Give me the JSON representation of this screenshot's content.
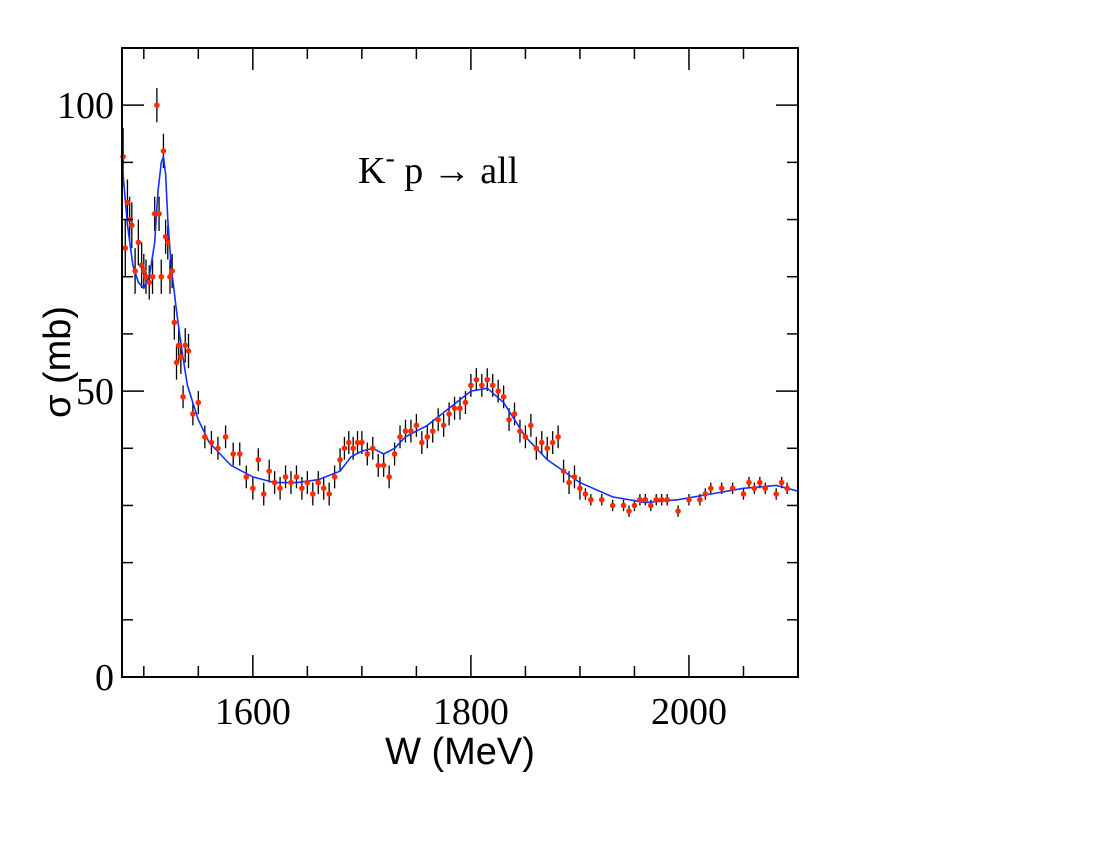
{
  "chart_data": {
    "type": "scatter",
    "title": "",
    "annotation": {
      "particle": "K",
      "charge": "-",
      "rest": " p → all"
    },
    "xlabel": "W (MeV)",
    "ylabel": "σ (mb)",
    "xlim": [
      1480,
      2100
    ],
    "ylim": [
      0,
      110
    ],
    "x_ticks": [
      1600,
      1800,
      2000
    ],
    "y_ticks": [
      0,
      50,
      100
    ],
    "grid": false,
    "colors": {
      "points": "#ff2a00",
      "errors": "#000000",
      "fit": "#1030ff",
      "frame": "#000000"
    },
    "series": [
      {
        "kind": "points_with_errors",
        "x": [
          1481,
          1483,
          1485,
          1487,
          1489,
          1492,
          1495,
          1498,
          1500,
          1502,
          1505,
          1508,
          1510,
          1512,
          1514,
          1516,
          1518,
          1520,
          1522,
          1524,
          1526,
          1528,
          1530,
          1532,
          1534,
          1536,
          1538,
          1541,
          1545,
          1550,
          1556,
          1562,
          1568,
          1575,
          1582,
          1588,
          1594,
          1600,
          1605,
          1610,
          1615,
          1620,
          1625,
          1630,
          1635,
          1640,
          1645,
          1650,
          1655,
          1660,
          1665,
          1670,
          1675,
          1680,
          1684,
          1688,
          1692,
          1696,
          1700,
          1705,
          1710,
          1715,
          1720,
          1725,
          1730,
          1735,
          1740,
          1745,
          1750,
          1755,
          1760,
          1765,
          1770,
          1775,
          1780,
          1785,
          1790,
          1795,
          1800,
          1805,
          1810,
          1815,
          1820,
          1825,
          1830,
          1835,
          1840,
          1845,
          1850,
          1855,
          1860,
          1865,
          1870,
          1875,
          1880,
          1885,
          1890,
          1895,
          1900,
          1905,
          1910,
          1920,
          1930,
          1940,
          1945,
          1950,
          1955,
          1960,
          1965,
          1970,
          1975,
          1980,
          1990,
          2000,
          2010,
          2015,
          2020,
          2030,
          2040,
          2050,
          2055,
          2060,
          2065,
          2070,
          2080,
          2085,
          2090
        ],
        "y": [
          91,
          75,
          83,
          80,
          79,
          71,
          76,
          72,
          71,
          70,
          69,
          70,
          81,
          100,
          81,
          70,
          92,
          77,
          76,
          70,
          71,
          62,
          55,
          58,
          56,
          49,
          58,
          57,
          46,
          48,
          42,
          41,
          40,
          42,
          39,
          39,
          35,
          33,
          38,
          32,
          36,
          34,
          33,
          35,
          34,
          35,
          33,
          34,
          32,
          34,
          33,
          32,
          35,
          38,
          40,
          41,
          40,
          41,
          41,
          39,
          40,
          37,
          37,
          35,
          39,
          42,
          43,
          43,
          44,
          41,
          42,
          43,
          45,
          44,
          46,
          47,
          47,
          48,
          51,
          52,
          51,
          52,
          51,
          50,
          49,
          45,
          46,
          43,
          42,
          44,
          40,
          41,
          40,
          41,
          42,
          36,
          34,
          35,
          33,
          32,
          31,
          31,
          30,
          30,
          29,
          30,
          31,
          31,
          30,
          31,
          31,
          31,
          29,
          31,
          31,
          32,
          33,
          33,
          33,
          32,
          34,
          33,
          34,
          33,
          32,
          34,
          33
        ],
        "err": [
          5,
          5,
          4,
          4,
          4,
          4,
          4,
          4,
          3,
          3,
          3,
          3,
          3,
          3,
          3,
          3,
          3,
          3,
          3,
          3,
          3,
          3,
          3,
          3,
          3,
          2,
          3,
          3,
          2,
          2,
          2,
          2,
          2,
          2,
          2,
          2,
          2,
          2,
          2,
          2,
          2,
          2,
          2,
          2,
          2,
          2,
          2,
          2,
          2,
          2,
          2,
          2,
          2,
          2,
          2,
          2,
          2,
          2,
          2,
          2,
          2,
          2,
          2,
          2,
          2,
          2,
          2,
          2,
          2,
          2,
          2,
          2,
          2,
          2,
          2,
          2,
          2,
          2,
          2,
          2,
          2,
          2,
          2,
          2,
          2,
          2,
          2,
          2,
          2,
          2,
          2,
          2,
          2,
          2,
          2,
          2,
          2,
          2,
          2,
          1,
          1,
          1,
          1,
          1,
          1,
          1,
          1,
          1,
          1,
          1,
          1,
          1,
          1,
          1,
          1,
          1,
          1,
          1,
          1,
          1,
          1,
          1,
          1,
          1,
          1,
          1,
          1
        ]
      },
      {
        "kind": "fit_curve",
        "x": [
          1480,
          1485,
          1490,
          1495,
          1500,
          1505,
          1510,
          1513,
          1516,
          1518,
          1520,
          1522,
          1525,
          1530,
          1535,
          1540,
          1550,
          1560,
          1570,
          1580,
          1600,
          1620,
          1640,
          1660,
          1680,
          1690,
          1700,
          1710,
          1720,
          1730,
          1740,
          1760,
          1780,
          1800,
          1815,
          1830,
          1850,
          1870,
          1900,
          1930,
          1960,
          1990,
          2020,
          2050,
          2080,
          2100
        ],
        "y": [
          90,
          79,
          72,
          69,
          68,
          70,
          76,
          85,
          90,
          91,
          88,
          80,
          72,
          64,
          57,
          51,
          45,
          41,
          39,
          37,
          35,
          34,
          34,
          34.5,
          36,
          38.5,
          39.5,
          40,
          39,
          40,
          42,
          44,
          47,
          50,
          50.5,
          48,
          42,
          38,
          34,
          31.5,
          30.5,
          31,
          32,
          33,
          33.5,
          32.5
        ]
      }
    ]
  }
}
